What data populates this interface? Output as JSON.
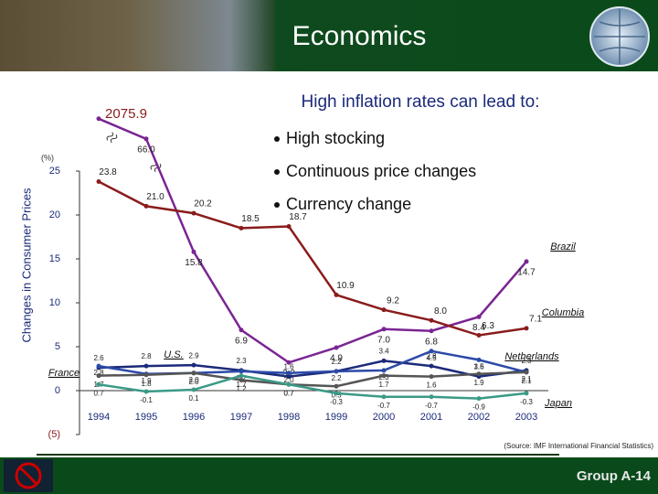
{
  "header": {
    "title": "Economics"
  },
  "panel": {
    "heading": "High inflation rates can lead to:",
    "bullets": [
      "High stocking",
      "Continuous price changes",
      "Currency change"
    ]
  },
  "chart_data": {
    "type": "line",
    "y_label": "Changes in Consumer Prices",
    "unit_label": "(%)",
    "categories": [
      "1994",
      "1995",
      "1996",
      "1997",
      "1998",
      "1999",
      "2000",
      "2001",
      "2002",
      "2003"
    ],
    "ylim": [
      -5,
      25
    ],
    "yticks": [
      25,
      20,
      15,
      10,
      5,
      0,
      {
        "value": -5,
        "label": "(5)"
      }
    ],
    "y_break": true,
    "series": [
      {
        "name": "Brazil",
        "color": "#7a2592",
        "values": [
          2075.9,
          66.0,
          15.8,
          6.9,
          3.2,
          4.9,
          7.0,
          6.8,
          8.4,
          14.7
        ],
        "value_labels": [
          "2075.9",
          "66.0",
          "15.8",
          "6.9",
          "3.2",
          "4.9",
          "7.0",
          "6.8",
          "8.4",
          "14.7"
        ]
      },
      {
        "name": "Columbia",
        "color": "#8a1c1c",
        "values": [
          23.8,
          21.0,
          20.2,
          18.5,
          18.7,
          10.9,
          9.2,
          8.0,
          6.3,
          7.1
        ],
        "value_labels": [
          "23.8",
          "21.0",
          "20.2",
          "18.5",
          "18.7",
          "10.9",
          "9.2",
          "8.0",
          "6.3",
          "7.1"
        ]
      },
      {
        "name": "U.S.",
        "color": "#1b2a7a",
        "values": [
          2.6,
          2.8,
          2.9,
          2.3,
          1.6,
          2.2,
          3.4,
          2.8,
          1.6,
          2.3
        ],
        "value_labels": [
          "2.6",
          "2.8",
          "2.9",
          "2.3",
          "1.6",
          "2.2",
          "3.4",
          "2.8",
          "1.6",
          "2.3"
        ]
      },
      {
        "name": "Netherlands",
        "color": "#2c4aa8",
        "values": [
          2.8,
          1.9,
          2.0,
          2.2,
          2.0,
          2.2,
          2.3,
          4.5,
          3.5,
          2.1
        ],
        "value_labels": [
          "2.8",
          "1.9",
          "2.0",
          "2.2",
          "2.0",
          "2.2",
          "2.3",
          "4.5",
          "3.5",
          "2.1"
        ]
      },
      {
        "name": "France",
        "color": "#555555",
        "values": [
          1.7,
          1.8,
          2.0,
          1.2,
          0.7,
          0.5,
          1.7,
          1.6,
          1.9,
          2.1
        ],
        "value_labels": [
          "1.7",
          "1.8",
          "2.0",
          "1.2",
          "0.7",
          "0.5",
          "1.7",
          "1.6",
          "1.9",
          "2.1"
        ]
      },
      {
        "name": "Japan",
        "color": "#3a9a86",
        "values": [
          0.7,
          -0.1,
          0.1,
          1.7,
          0.7,
          -0.3,
          -0.7,
          -0.7,
          -0.9,
          -0.3
        ],
        "value_labels": [
          "0.7",
          "-0.1",
          "0.1",
          "1.7",
          "0.7",
          "-0.3",
          "-0.7",
          "-0.7",
          "-0.9",
          "-0.3"
        ]
      }
    ],
    "source": "(Source: IMF International Financial Statistics)"
  },
  "footer": {
    "label": "Group A-14"
  }
}
